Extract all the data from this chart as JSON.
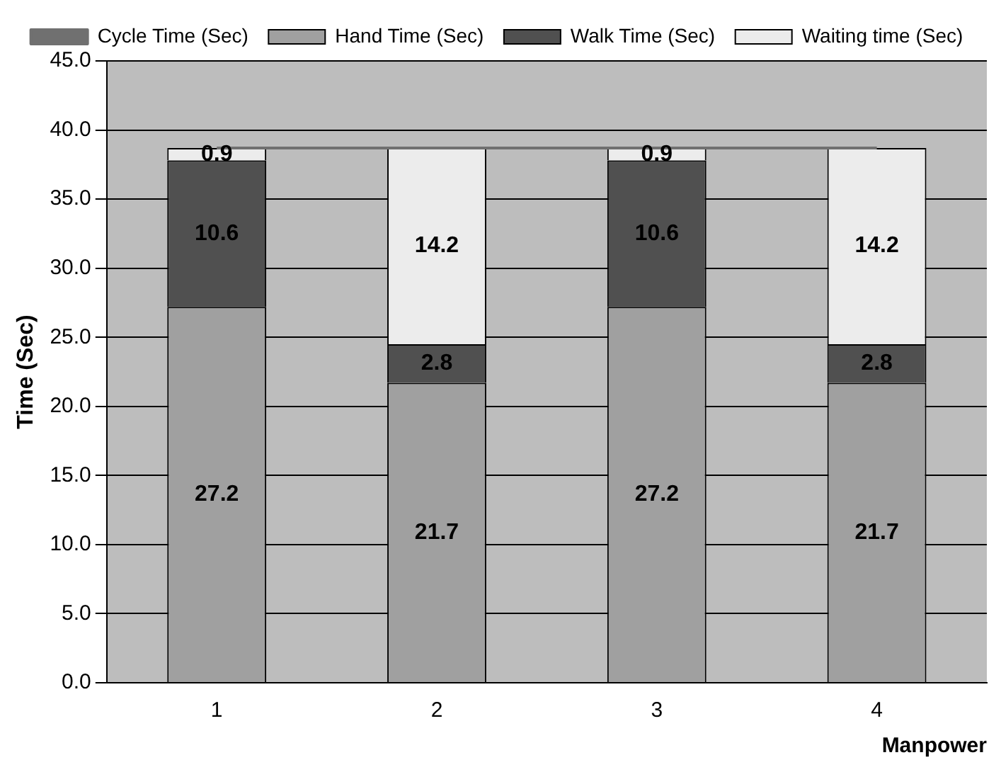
{
  "chart_data": {
    "type": "bar",
    "stacked": true,
    "xlabel": "Manpower",
    "ylabel": "Time (Sec)",
    "categories": [
      "1",
      "2",
      "3",
      "4"
    ],
    "series": [
      {
        "name": "Hand Time (Sec)",
        "color": "#a0a0a0",
        "values": [
          27.2,
          21.7,
          27.2,
          21.7
        ],
        "value_labels": [
          "27.2",
          "21.7",
          "27.2",
          "21.7"
        ]
      },
      {
        "name": "Walk Time (Sec)",
        "color": "#505050",
        "values": [
          10.6,
          2.8,
          10.6,
          2.8
        ],
        "value_labels": [
          "10.6",
          "2.8",
          "10.6",
          "2.8"
        ]
      },
      {
        "name": "Waiting time (Sec)",
        "color": "#ececec",
        "values": [
          0.9,
          14.2,
          0.9,
          14.2
        ],
        "value_labels": [
          "0.9",
          "14.2",
          "0.9",
          "14.2"
        ]
      },
      {
        "name": "Cycle Time (Sec)",
        "type": "line",
        "color": "#707070",
        "values": [
          38.7,
          38.7,
          38.7,
          38.7
        ]
      }
    ],
    "ylim": [
      0,
      45
    ],
    "yticks": [
      {
        "value": 0,
        "label": "0.0"
      },
      {
        "value": 5,
        "label": "5.0"
      },
      {
        "value": 10,
        "label": "10.0"
      },
      {
        "value": 15,
        "label": "15.0"
      },
      {
        "value": 20,
        "label": "20.0"
      },
      {
        "value": 25,
        "label": "25.0"
      },
      {
        "value": 30,
        "label": "30.0"
      },
      {
        "value": 35,
        "label": "35.0"
      },
      {
        "value": 40,
        "label": "40.0"
      },
      {
        "value": 45,
        "label": "45.0"
      }
    ],
    "grid": "y",
    "legend": "top",
    "marker": "none"
  }
}
